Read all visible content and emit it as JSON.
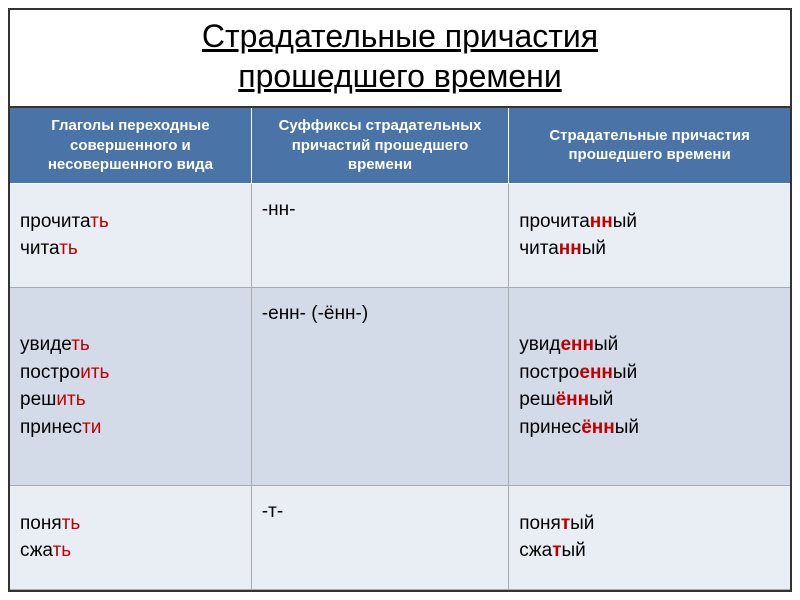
{
  "title_line1": "Страдательные причастия",
  "title_line2": "прошедшего времени",
  "headers": {
    "col1": "Глаголы переходные совершенного и несовершенного вида",
    "col2": "Суффиксы страдательных причастий прошедшего времени",
    "col3": "Страдательные причастия прошедшего времени"
  },
  "row1": {
    "verbs": [
      {
        "stem": "прочита",
        "end": "ть"
      },
      {
        "stem": "чита",
        "end": "ть"
      }
    ],
    "suffix": "-нн-",
    "participles": [
      {
        "pre": "прочита",
        "mid": "нн",
        "post": "ый"
      },
      {
        "pre": "чита",
        "mid": "нн",
        "post": "ый"
      }
    ]
  },
  "row2": {
    "verbs": [
      {
        "stem": "увиде",
        "end": "ть"
      },
      {
        "stem": "постро",
        "end": "ить"
      },
      {
        "stem": "реш",
        "end": "ить"
      },
      {
        "stem": "принес",
        "end": "ти"
      }
    ],
    "suffix": "-енн- (-ённ-)",
    "participles": [
      {
        "pre": "увид",
        "mid": "енн",
        "post": "ый"
      },
      {
        "pre": "постро",
        "mid": "енн",
        "post": "ый"
      },
      {
        "pre": "реш",
        "mid": "ённ",
        "post": "ый"
      },
      {
        "pre": "принес",
        "mid": "ённ",
        "post": "ый"
      }
    ]
  },
  "row3": {
    "verbs": [
      {
        "stem": "поня",
        "end": "ть"
      },
      {
        "stem": "сжа",
        "end": "ть"
      }
    ],
    "suffix": "-т-",
    "participles": [
      {
        "pre": "поня",
        "mid": "т",
        "post": "ый"
      },
      {
        "pre": "сжа",
        "mid": "т",
        "post": "ый"
      }
    ]
  },
  "colors": {
    "header_bg": "#4a74a8",
    "body_bg": "#e9edf4",
    "alt_bg": "#d3dbe9",
    "red": "#c00000",
    "border": "#333333",
    "cell_border": "#aaaaaa"
  }
}
